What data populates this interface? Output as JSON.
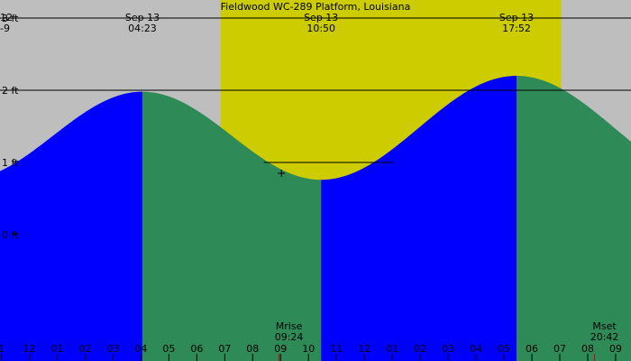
{
  "chart_data": {
    "type": "area",
    "title": "Fieldwood WC-289 Platform, Louisiana",
    "y_unit": "ft",
    "y_ticks": [
      {
        "value": 3,
        "label": "3 ft"
      },
      {
        "value": 2,
        "label": "2 ft"
      },
      {
        "value": 1,
        "label": "1 ft"
      },
      {
        "value": 0,
        "label": "0 ft"
      }
    ],
    "ylim": [
      -1.75,
      3.25
    ],
    "x_unit": "hour",
    "xlim": [
      -0.05,
      22.55
    ],
    "x_tick_labels": [
      "1",
      "12",
      "01",
      "02",
      "03",
      "04",
      "05",
      "06",
      "07",
      "08",
      "09",
      "10",
      "11",
      "12",
      "01",
      "02",
      "03",
      "04",
      "05",
      "06",
      "07",
      "08",
      "09"
    ],
    "x_tick_first_hour": 0,
    "extremes": [
      {
        "type": "high",
        "date": "Sep 13",
        "time": "04:23",
        "hour": 5.05,
        "level": 1.98
      },
      {
        "type": "low",
        "date": "Sep 13",
        "time": "10:50",
        "hour": 11.45,
        "level": 0.76
      },
      {
        "type": "high",
        "date": "Sep 13",
        "time": "17:52",
        "hour": 18.45,
        "level": 2.2
      }
    ],
    "partial_label": {
      "line1": "12",
      "line2": "-9"
    },
    "tide_series": [
      {
        "hour": -0.05,
        "level": 1.1
      },
      {
        "hour": 5.05,
        "level": 1.98
      },
      {
        "hour": 11.45,
        "level": 0.76
      },
      {
        "hour": 18.45,
        "level": 2.2
      },
      {
        "hour": 22.55,
        "level": 1.55
      }
    ],
    "daylight": {
      "start_hour": 7.85,
      "end_hour": 20.05
    },
    "moon": [
      {
        "label": "Mrise",
        "time": "09:24",
        "hour": 10.3
      },
      {
        "label": "Mset",
        "time": "20:42",
        "hour": 21.6
      }
    ],
    "marker_hour": 10.03,
    "marker_level": 0.85,
    "reference_line": {
      "level": 1,
      "start_hour": 9.4,
      "end_hour": 14.05
    },
    "colors": {
      "night": "#bebebe",
      "daylight": "#cccc00",
      "rising": "#0000ff",
      "falling": "#2e8b57",
      "moon_tick": "#cc0000",
      "grid": "#000000"
    }
  }
}
